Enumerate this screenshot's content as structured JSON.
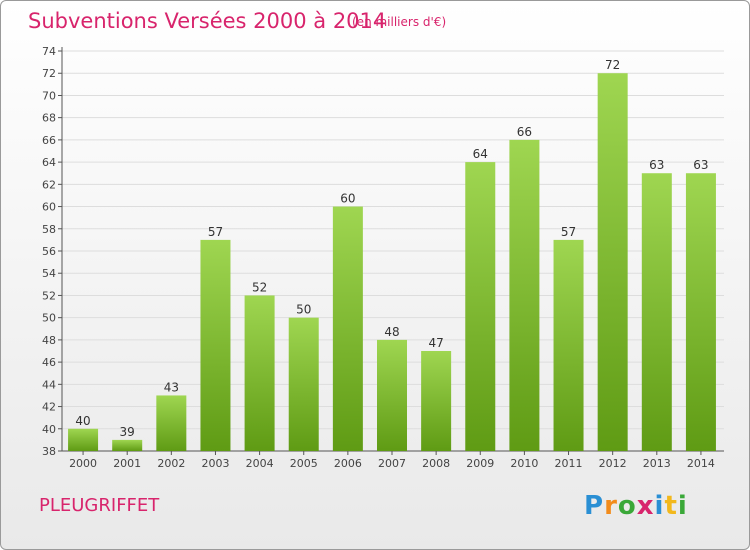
{
  "title": "Subventions Versées 2000 à 2014",
  "subtitle": "(en milliers d'€)",
  "commune": "PLEUGRIFFET",
  "logo": {
    "letters": [
      "P",
      "r",
      "o",
      "x",
      "i",
      "t",
      "i"
    ],
    "colors": [
      "#2a8fd4",
      "#f28c1c",
      "#3aa838",
      "#d8246c",
      "#2a8fd4",
      "#f2b81c",
      "#3aa838"
    ]
  },
  "colors": {
    "title": "#d8246c",
    "bar_top": "#9fd651",
    "bar_bottom": "#5f9b14",
    "grid": "#dddddd",
    "axis": "#555555"
  },
  "chart_data": {
    "type": "bar",
    "categories": [
      "2000",
      "2001",
      "2002",
      "2003",
      "2004",
      "2005",
      "2006",
      "2007",
      "2008",
      "2009",
      "2010",
      "2011",
      "2012",
      "2013",
      "2014"
    ],
    "values": [
      40,
      39,
      43,
      57,
      52,
      50,
      60,
      48,
      47,
      64,
      66,
      57,
      72,
      63,
      63
    ],
    "ylim": [
      38,
      74
    ],
    "yticks": [
      38,
      40,
      42,
      44,
      46,
      48,
      50,
      52,
      54,
      56,
      58,
      60,
      62,
      64,
      66,
      68,
      70,
      72,
      74
    ],
    "grid": true,
    "title": "Subventions Versées 2000 à 2014",
    "xlabel": "",
    "ylabel": ""
  }
}
